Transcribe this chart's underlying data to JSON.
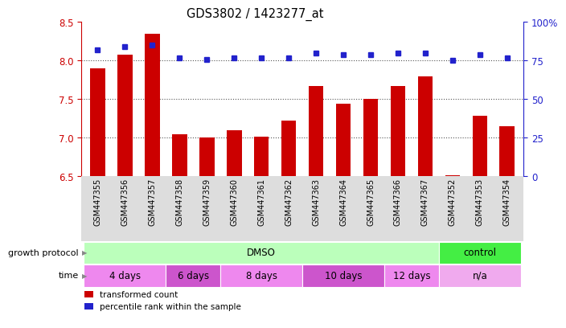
{
  "title": "GDS3802 / 1423277_at",
  "samples": [
    "GSM447355",
    "GSM447356",
    "GSM447357",
    "GSM447358",
    "GSM447359",
    "GSM447360",
    "GSM447361",
    "GSM447362",
    "GSM447363",
    "GSM447364",
    "GSM447365",
    "GSM447366",
    "GSM447367",
    "GSM447352",
    "GSM447353",
    "GSM447354"
  ],
  "transformed_count": [
    7.9,
    8.08,
    8.35,
    7.05,
    7.0,
    7.1,
    7.01,
    7.22,
    7.67,
    7.44,
    7.5,
    7.67,
    7.8,
    6.52,
    7.29,
    7.15
  ],
  "percentile_rank": [
    82,
    84,
    85,
    77,
    76,
    77,
    77,
    77,
    80,
    79,
    79,
    80,
    80,
    75,
    79,
    77
  ],
  "ylim_left": [
    6.5,
    8.5
  ],
  "ylim_right": [
    0,
    100
  ],
  "yticks_left": [
    6.5,
    7.0,
    7.5,
    8.0,
    8.5
  ],
  "yticks_right": [
    0,
    25,
    50,
    75,
    100
  ],
  "ytick_labels_right": [
    "0",
    "25",
    "50",
    "75",
    "100%"
  ],
  "bar_color": "#cc0000",
  "dot_color": "#2222cc",
  "bar_bottom": 6.5,
  "growth_protocol_groups": [
    {
      "label": "DMSO",
      "start": 0,
      "end": 12,
      "color": "#bbffbb"
    },
    {
      "label": "control",
      "start": 13,
      "end": 15,
      "color": "#44ee44"
    }
  ],
  "time_groups": [
    {
      "label": "4 days",
      "start": 0,
      "end": 2,
      "color": "#ee88ee"
    },
    {
      "label": "6 days",
      "start": 3,
      "end": 4,
      "color": "#cc55cc"
    },
    {
      "label": "8 days",
      "start": 5,
      "end": 7,
      "color": "#ee88ee"
    },
    {
      "label": "10 days",
      "start": 8,
      "end": 10,
      "color": "#cc55cc"
    },
    {
      "label": "12 days",
      "start": 11,
      "end": 12,
      "color": "#ee88ee"
    },
    {
      "label": "n/a",
      "start": 13,
      "end": 15,
      "color": "#f0aaee"
    }
  ],
  "legend_items": [
    {
      "label": "transformed count",
      "color": "#cc0000"
    },
    {
      "label": "percentile rank within the sample",
      "color": "#2222cc"
    }
  ],
  "row_labels": [
    "growth protocol",
    "time"
  ],
  "axis_color_left": "#cc0000",
  "axis_color_right": "#2222cc",
  "sample_bg_color": "#dddddd",
  "background_color": "#ffffff"
}
